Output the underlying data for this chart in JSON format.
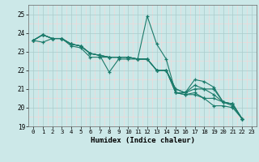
{
  "xlabel": "Humidex (Indice chaleur)",
  "xlim": [
    -0.5,
    23.5
  ],
  "ylim": [
    19,
    25.5
  ],
  "yticks": [
    19,
    20,
    21,
    22,
    23,
    24,
    25
  ],
  "xticks": [
    0,
    1,
    2,
    3,
    4,
    5,
    6,
    7,
    8,
    9,
    10,
    11,
    12,
    13,
    14,
    15,
    16,
    17,
    18,
    19,
    20,
    21,
    22,
    23
  ],
  "bg_color": "#cce8e8",
  "grid_major_color": "#aacccc",
  "grid_minor_color": "#f0d8d8",
  "line_color": "#1a7a6a",
  "series": [
    [
      23.6,
      23.9,
      23.7,
      23.7,
      23.4,
      23.3,
      22.9,
      22.8,
      21.9,
      22.6,
      22.6,
      22.6,
      24.9,
      23.4,
      22.6,
      20.8,
      20.8,
      21.5,
      21.4,
      21.1,
      20.3,
      20.1,
      19.4,
      null
    ],
    [
      23.6,
      23.9,
      23.7,
      23.7,
      23.4,
      23.3,
      22.9,
      22.8,
      22.7,
      22.7,
      22.7,
      22.6,
      22.6,
      22.0,
      22.0,
      21.0,
      20.8,
      21.2,
      21.0,
      21.0,
      20.3,
      20.2,
      19.4,
      null
    ],
    [
      23.6,
      23.9,
      23.7,
      23.7,
      23.4,
      23.3,
      22.9,
      22.8,
      22.7,
      22.7,
      22.7,
      22.6,
      22.6,
      22.0,
      22.0,
      21.0,
      20.8,
      21.0,
      21.0,
      20.7,
      20.3,
      20.2,
      19.4,
      null
    ],
    [
      23.6,
      23.9,
      23.7,
      23.7,
      23.4,
      23.3,
      22.9,
      22.8,
      22.7,
      22.7,
      22.7,
      22.6,
      22.6,
      22.0,
      22.0,
      20.8,
      20.7,
      20.8,
      20.5,
      20.5,
      20.3,
      20.2,
      19.4,
      null
    ],
    [
      23.6,
      23.5,
      23.7,
      23.7,
      23.3,
      23.2,
      22.7,
      22.7,
      22.7,
      22.7,
      22.7,
      22.6,
      22.6,
      22.0,
      22.0,
      20.8,
      20.7,
      20.7,
      20.5,
      20.1,
      20.1,
      20.0,
      19.4,
      null
    ]
  ]
}
